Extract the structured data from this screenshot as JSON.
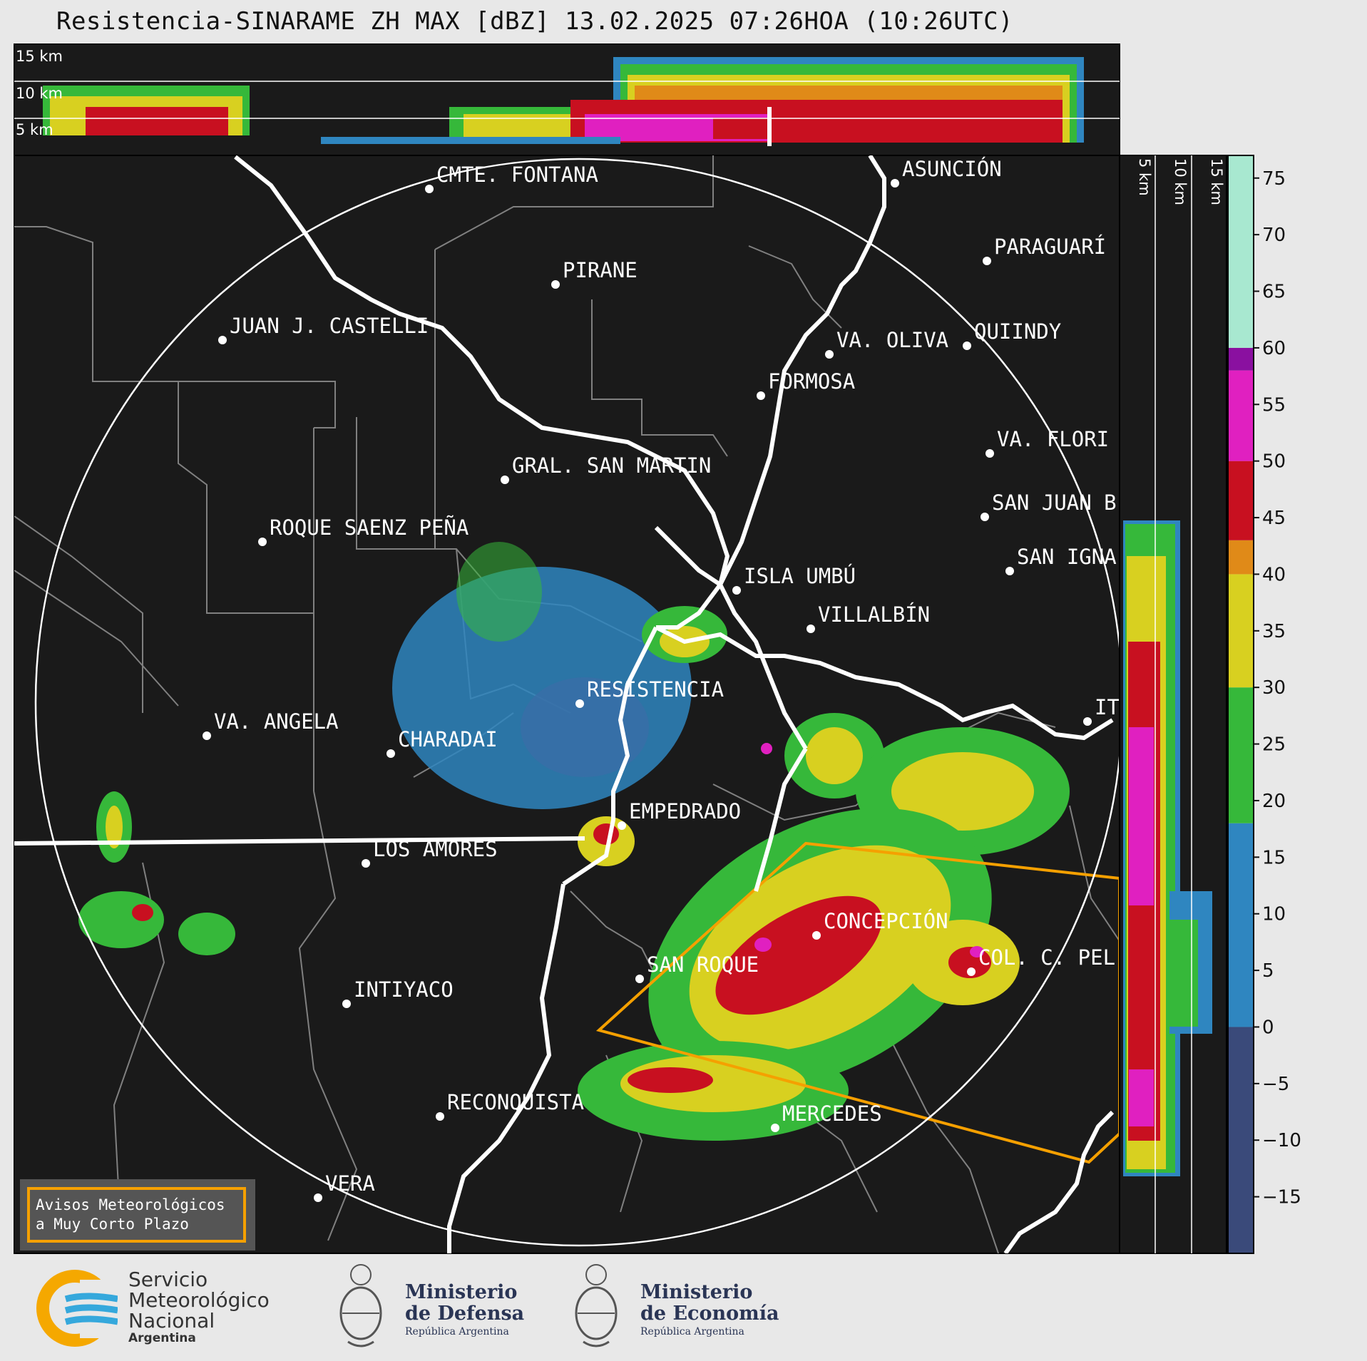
{
  "title": "Resistencia-SINARAME ZH MAX [dBZ] 13.02.2025 07:26HOA (10:26UTC)",
  "height_labels": {
    "top": [
      "15 km",
      "10 km",
      "5 km"
    ],
    "side": [
      "5 km",
      "10 km",
      "15 km"
    ]
  },
  "cities": [
    {
      "name": "CMTE. FONTANA"
    },
    {
      "name": "ASUNCIÓN"
    },
    {
      "name": "PARAGUARÍ"
    },
    {
      "name": "PIRANE"
    },
    {
      "name": "JUAN J. CASTELLI"
    },
    {
      "name": "VA. OLIVA"
    },
    {
      "name": "QUIINDY"
    },
    {
      "name": "FORMOSA"
    },
    {
      "name": "VA. FLORI"
    },
    {
      "name": "GRAL. SAN MARTIN"
    },
    {
      "name": "SAN JUAN B"
    },
    {
      "name": "SAN IGNA"
    },
    {
      "name": "ROQUE SAENZ PEÑA"
    },
    {
      "name": "ISLA UMBÚ"
    },
    {
      "name": "VILLALBÍN"
    },
    {
      "name": "RESISTENCIA"
    },
    {
      "name": "VA. ANGELA"
    },
    {
      "name": "CHARADAI"
    },
    {
      "name": "IT"
    },
    {
      "name": "EMPEDRADO"
    },
    {
      "name": "LOS AMORES"
    },
    {
      "name": "CONCEPCIÓN"
    },
    {
      "name": "SAN ROQUE"
    },
    {
      "name": "COL. C. PEL"
    },
    {
      "name": "INTIYACO"
    },
    {
      "name": "RECONQUISTA"
    },
    {
      "name": "MERCEDES"
    },
    {
      "name": "VERA"
    }
  ],
  "colorbar": {
    "ticks": [
      "75",
      "70",
      "65",
      "60",
      "55",
      "50",
      "45",
      "40",
      "35",
      "30",
      "25",
      "20",
      "15",
      "10",
      "5",
      "0",
      "−5",
      "−10",
      "−15"
    ],
    "stops": [
      {
        "from": -20,
        "to": 0,
        "color": "#3a4a7a"
      },
      {
        "from": 0,
        "to": 18,
        "color": "#2f86c0"
      },
      {
        "from": 18,
        "to": 30,
        "color": "#36b83a"
      },
      {
        "from": 30,
        "to": 40,
        "color": "#d8d020"
      },
      {
        "from": 40,
        "to": 43,
        "color": "#e08a18"
      },
      {
        "from": 43,
        "to": 50,
        "color": "#c81020"
      },
      {
        "from": 50,
        "to": 58,
        "color": "#e020c0"
      },
      {
        "from": 58,
        "to": 60,
        "color": "#8a10a0"
      },
      {
        "from": 60,
        "to": 77,
        "color": "#a8e8d0"
      }
    ]
  },
  "warning_box": {
    "line1": "Avisos Meteorológicos",
    "line2": "a Muy Corto Plazo"
  },
  "footer": {
    "smn": {
      "line1": "Servicio",
      "line2": "Meteorológico",
      "line3": "Nacional",
      "line4": "Argentina"
    },
    "defensa": {
      "title1": "Ministerio",
      "title2": "de Defensa",
      "sub": "República Argentina"
    },
    "economia": {
      "title1": "Ministerio",
      "title2": "de Economía",
      "sub": "República Argentina"
    }
  },
  "colors": {
    "map_bg": "#1a1a1a",
    "warning_polygon": "#f5a000",
    "river": "#ffffff",
    "border": "#808080"
  }
}
